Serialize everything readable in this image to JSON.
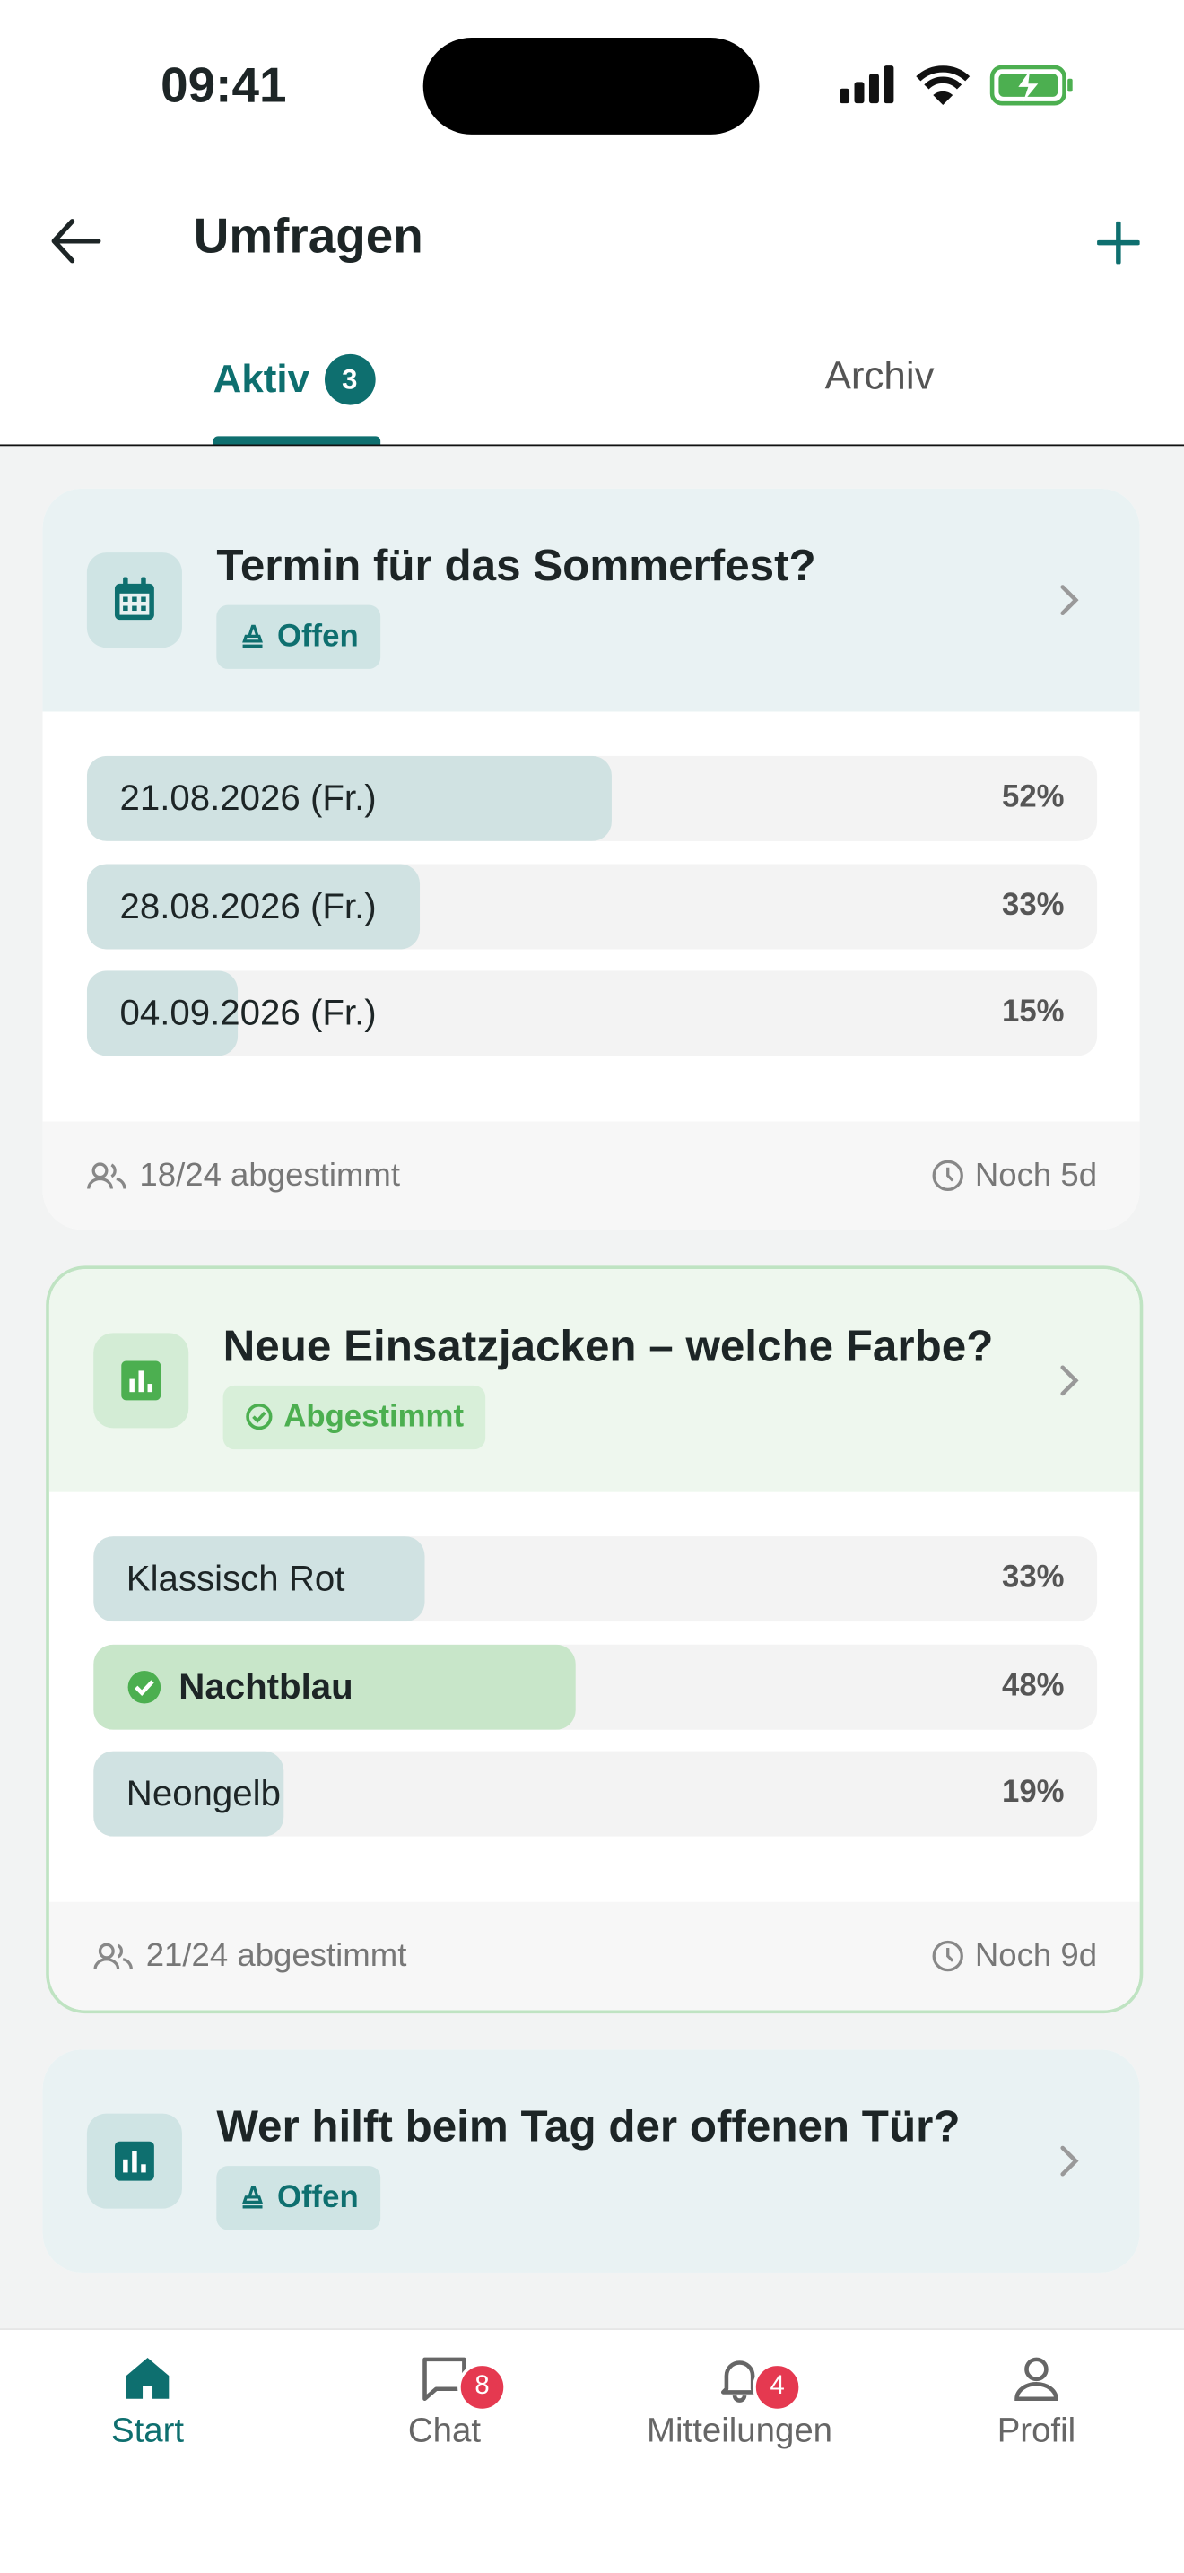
{
  "status_bar": {
    "time": "09:41"
  },
  "header": {
    "title": "Umfragen"
  },
  "tabs": [
    {
      "label": "Aktiv",
      "badge": "3",
      "active": true
    },
    {
      "label": "Archiv"
    }
  ],
  "polls": [
    {
      "title": "Termin für das Sommerfest?",
      "status": "Offen",
      "icon": "calendar",
      "options": [
        {
          "label": "21.08.2026 (Fr.)",
          "value": 52,
          "value_label": "52%"
        },
        {
          "label": "28.08.2026 (Fr.)",
          "value": 33,
          "value_label": "33%"
        },
        {
          "label": "04.09.2026 (Fr.)",
          "value": 15,
          "value_label": "15%"
        }
      ],
      "votes": "18/24 abgestimmt",
      "remaining": "Noch 5d"
    },
    {
      "title": "Neue Einsatzjacken – welche Farbe?",
      "status": "Abgestimmt",
      "voted": true,
      "icon": "chart",
      "options": [
        {
          "label": "Klassisch Rot",
          "value": 33,
          "value_label": "33%"
        },
        {
          "label": "Nachtblau",
          "value": 48,
          "value_label": "48%",
          "selected": true
        },
        {
          "label": "Neongelb",
          "value": 19,
          "value_label": "19%"
        }
      ],
      "votes": "21/24 abgestimmt",
      "remaining": "Noch 9d"
    },
    {
      "title": "Wer hilft beim Tag der offenen Tür?",
      "status": "Offen",
      "icon": "chart"
    }
  ],
  "nav": [
    {
      "label": "Start",
      "active": true,
      "icon": "home"
    },
    {
      "label": "Chat",
      "badge": "8",
      "icon": "chat"
    },
    {
      "label": "Mitteilungen",
      "badge": "4",
      "icon": "bell"
    },
    {
      "label": "Profil",
      "icon": "user"
    }
  ]
}
